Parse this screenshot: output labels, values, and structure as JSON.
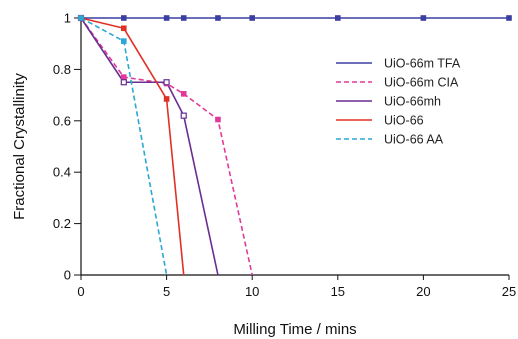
{
  "chart_data": {
    "type": "line",
    "xlabel": "Milling Time / mins",
    "ylabel": "Fractional Crystallinity",
    "xlim": [
      0,
      25
    ],
    "ylim": [
      0,
      1
    ],
    "xticks": [
      0,
      5,
      10,
      15,
      20,
      25
    ],
    "yticks": [
      0,
      0.2,
      0.4,
      0.6,
      0.8,
      1
    ],
    "ytick_labels": [
      "0",
      "0.2",
      "0.4",
      "0.6",
      "0.8",
      "1"
    ],
    "xtick_labels": [
      "0",
      "5",
      "10",
      "15",
      "20",
      "25"
    ],
    "grid": false,
    "legend_position": "right",
    "series": [
      {
        "name": "UiO-66m TFA",
        "color": "#3b3fa0",
        "dash": "solid",
        "marker": "filled-square",
        "x": [
          0,
          2.5,
          5,
          6,
          8,
          10,
          15,
          20,
          25
        ],
        "y": [
          1,
          1,
          1,
          1,
          1,
          1,
          1,
          1,
          1
        ]
      },
      {
        "name": "UiO-66m CIA",
        "color": "#e0399a",
        "dash": "dashed",
        "marker": "filled-square",
        "x": [
          0,
          2.5,
          5,
          6,
          8,
          10
        ],
        "y": [
          1,
          0.77,
          0.745,
          0.705,
          0.605,
          0
        ]
      },
      {
        "name": "UiO-66mh",
        "color": "#6a2d91",
        "dash": "solid",
        "marker": "open-square",
        "x": [
          0,
          2.5,
          5,
          6,
          8
        ],
        "y": [
          1,
          0.75,
          0.75,
          0.62,
          0
        ]
      },
      {
        "name": "UiO-66",
        "color": "#e03126",
        "dash": "solid",
        "marker": "filled-square",
        "x": [
          0,
          2.5,
          5,
          6
        ],
        "y": [
          1,
          0.96,
          0.685,
          0
        ]
      },
      {
        "name": "UiO-66 AA",
        "color": "#2aa7d6",
        "dash": "dashed",
        "marker": "filled-square",
        "x": [
          0,
          2.5,
          5
        ],
        "y": [
          1,
          0.91,
          0
        ]
      }
    ]
  }
}
